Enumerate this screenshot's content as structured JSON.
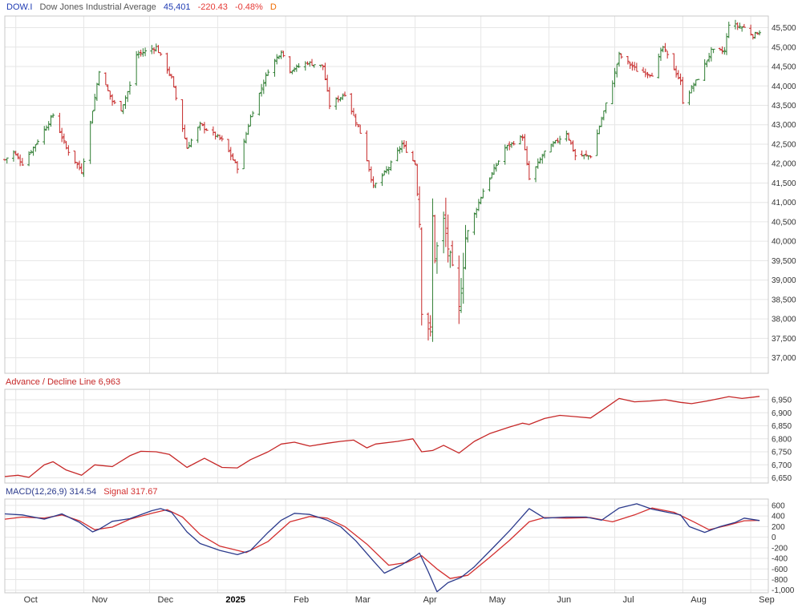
{
  "colors": {
    "up": "#2e7d32",
    "down": "#c62828",
    "ad_line": "#c62828",
    "macd_line": "#2b3a8c",
    "signal_line": "#d32f2f",
    "grid": "#e6e6e6",
    "frame": "#c8c8c8",
    "axis_text": "#333333",
    "label_blue": "#1f3bb3",
    "label_red": "#e53935",
    "label_gray": "#666666",
    "label_orange": "#ef6c00"
  },
  "header": {
    "symbol": "DOW.I",
    "name": "Dow Jones Industrial Average",
    "last": "45,401",
    "change": "-220.43",
    "change_pct": "-0.48%",
    "period": "D"
  },
  "ad_panel": {
    "label": "Advance / Decline Line 6,963"
  },
  "macd_panel": {
    "label": "MACD(12,26,9) 314.54",
    "signal_label": "Signal 317.67"
  },
  "chart_data": [
    {
      "type": "ohlc",
      "ylim": [
        36600,
        45800
      ],
      "y_ticks": [
        37000,
        37500,
        38000,
        38500,
        39000,
        39500,
        40000,
        40500,
        41000,
        41500,
        42000,
        42500,
        43000,
        43500,
        44000,
        44500,
        45000,
        45500
      ],
      "y_tick_labels": [
        "37,000",
        "37,500",
        "38,000",
        "38,500",
        "39,000",
        "39,500",
        "40,000",
        "40,500",
        "41,000",
        "41,500",
        "42,000",
        "42,500",
        "43,000",
        "43,500",
        "44,000",
        "44,500",
        "45,000",
        "45,500"
      ],
      "grid": true,
      "close_anchors": [
        [
          "2024-09-26",
          42100
        ],
        [
          "2024-09-30",
          42300
        ],
        [
          "2024-10-04",
          42000
        ],
        [
          "2024-10-10",
          42500
        ],
        [
          "2024-10-18",
          43250
        ],
        [
          "2024-10-24",
          42400
        ],
        [
          "2024-10-31",
          41800
        ],
        [
          "2024-11-01",
          42100
        ],
        [
          "2024-11-06",
          43700
        ],
        [
          "2024-11-08",
          44400
        ],
        [
          "2024-11-14",
          43600
        ],
        [
          "2024-11-18",
          43400
        ],
        [
          "2024-11-22",
          44000
        ],
        [
          "2024-11-25",
          44800
        ],
        [
          "2024-12-04",
          45000
        ],
        [
          "2024-12-11",
          44200
        ],
        [
          "2024-12-18",
          42400
        ],
        [
          "2024-12-24",
          43000
        ],
        [
          "2025-01-03",
          42600
        ],
        [
          "2025-01-10",
          41900
        ],
        [
          "2025-01-16",
          43200
        ],
        [
          "2025-01-24",
          44400
        ],
        [
          "2025-01-30",
          44900
        ],
        [
          "2025-02-03",
          44400
        ],
        [
          "2025-02-11",
          44600
        ],
        [
          "2025-02-18",
          44500
        ],
        [
          "2025-02-21",
          43500
        ],
        [
          "2025-02-28",
          43800
        ],
        [
          "2025-03-07",
          42800
        ],
        [
          "2025-03-13",
          41400
        ],
        [
          "2025-03-20",
          41900
        ],
        [
          "2025-03-26",
          42500
        ],
        [
          "2025-04-01",
          42000
        ],
        [
          "2025-04-03",
          40500
        ],
        [
          "2025-04-04",
          38300
        ],
        [
          "2025-04-08",
          37650
        ],
        [
          "2025-04-09",
          40600
        ],
        [
          "2025-04-10",
          39600
        ],
        [
          "2025-04-14",
          40500
        ],
        [
          "2025-04-21",
          38200
        ],
        [
          "2025-04-24",
          40100
        ],
        [
          "2025-05-02",
          41300
        ],
        [
          "2025-05-12",
          42400
        ],
        [
          "2025-05-20",
          42700
        ],
        [
          "2025-05-23",
          41600
        ],
        [
          "2025-05-30",
          42300
        ],
        [
          "2025-06-09",
          42800
        ],
        [
          "2025-06-13",
          42200
        ],
        [
          "2025-06-20",
          42200
        ],
        [
          "2025-06-30",
          44100
        ],
        [
          "2025-07-03",
          44800
        ],
        [
          "2025-07-11",
          44400
        ],
        [
          "2025-07-18",
          44300
        ],
        [
          "2025-07-23",
          45000
        ],
        [
          "2025-07-31",
          44100
        ],
        [
          "2025-08-01",
          43600
        ],
        [
          "2025-08-08",
          44200
        ],
        [
          "2025-08-14",
          44900
        ],
        [
          "2025-08-20",
          44900
        ],
        [
          "2025-08-22",
          45600
        ],
        [
          "2025-08-29",
          45500
        ],
        [
          "2025-09-02",
          45300
        ],
        [
          "2025-09-05",
          45401
        ]
      ]
    },
    {
      "type": "line",
      "name": "Advance / Decline Line",
      "ylim": [
        6630,
        6990
      ],
      "y_ticks": [
        6650,
        6700,
        6750,
        6800,
        6850,
        6900,
        6950
      ],
      "y_tick_labels": [
        "6,650",
        "6,700",
        "6,750",
        "6,800",
        "6,850",
        "6,900",
        "6,950"
      ],
      "points": [
        [
          "2024-09-26",
          6655
        ],
        [
          "2024-10-02",
          6660
        ],
        [
          "2024-10-07",
          6652
        ],
        [
          "2024-10-14",
          6700
        ],
        [
          "2024-10-18",
          6712
        ],
        [
          "2024-10-24",
          6680
        ],
        [
          "2024-10-31",
          6660
        ],
        [
          "2024-11-06",
          6700
        ],
        [
          "2024-11-14",
          6693
        ],
        [
          "2024-11-22",
          6735
        ],
        [
          "2024-11-27",
          6752
        ],
        [
          "2024-12-04",
          6750
        ],
        [
          "2024-12-10",
          6740
        ],
        [
          "2024-12-18",
          6690
        ],
        [
          "2024-12-26",
          6725
        ],
        [
          "2025-01-03",
          6690
        ],
        [
          "2025-01-10",
          6688
        ],
        [
          "2025-01-16",
          6720
        ],
        [
          "2025-01-24",
          6750
        ],
        [
          "2025-01-30",
          6780
        ],
        [
          "2025-02-05",
          6787
        ],
        [
          "2025-02-12",
          6772
        ],
        [
          "2025-02-20",
          6783
        ],
        [
          "2025-02-26",
          6790
        ],
        [
          "2025-03-04",
          6795
        ],
        [
          "2025-03-10",
          6765
        ],
        [
          "2025-03-14",
          6780
        ],
        [
          "2025-03-24",
          6790
        ],
        [
          "2025-03-31",
          6800
        ],
        [
          "2025-04-04",
          6750
        ],
        [
          "2025-04-09",
          6755
        ],
        [
          "2025-04-14",
          6775
        ],
        [
          "2025-04-21",
          6745
        ],
        [
          "2025-04-28",
          6790
        ],
        [
          "2025-05-05",
          6820
        ],
        [
          "2025-05-14",
          6845
        ],
        [
          "2025-05-20",
          6860
        ],
        [
          "2025-05-23",
          6855
        ],
        [
          "2025-05-30",
          6878
        ],
        [
          "2025-06-06",
          6890
        ],
        [
          "2025-06-13",
          6885
        ],
        [
          "2025-06-20",
          6880
        ],
        [
          "2025-06-27",
          6920
        ],
        [
          "2025-07-03",
          6955
        ],
        [
          "2025-07-10",
          6942
        ],
        [
          "2025-07-17",
          6945
        ],
        [
          "2025-07-24",
          6950
        ],
        [
          "2025-07-31",
          6940
        ],
        [
          "2025-08-05",
          6935
        ],
        [
          "2025-08-12",
          6945
        ],
        [
          "2025-08-18",
          6955
        ],
        [
          "2025-08-22",
          6962
        ],
        [
          "2025-08-28",
          6955
        ],
        [
          "2025-09-02",
          6960
        ],
        [
          "2025-09-05",
          6963
        ]
      ]
    },
    {
      "type": "line",
      "name": "MACD(12,26,9)",
      "ylim": [
        -1050,
        720
      ],
      "y_ticks": [
        -1000,
        -800,
        -600,
        -400,
        -200,
        0,
        200,
        400,
        600
      ],
      "y_tick_labels": [
        "-1,000",
        "-800",
        "-600",
        "-400",
        "-200",
        "0",
        "200",
        "400",
        "600"
      ],
      "series": [
        {
          "name": "MACD",
          "points": [
            [
              "2024-09-26",
              440
            ],
            [
              "2024-10-04",
              420
            ],
            [
              "2024-10-14",
              340
            ],
            [
              "2024-10-22",
              440
            ],
            [
              "2024-10-30",
              280
            ],
            [
              "2024-11-05",
              100
            ],
            [
              "2024-11-08",
              150
            ],
            [
              "2024-11-14",
              300
            ],
            [
              "2024-11-22",
              350
            ],
            [
              "2024-12-02",
              500
            ],
            [
              "2024-12-06",
              540
            ],
            [
              "2024-12-11",
              470
            ],
            [
              "2024-12-18",
              100
            ],
            [
              "2024-12-24",
              -120
            ],
            [
              "2025-01-02",
              -250
            ],
            [
              "2025-01-10",
              -330
            ],
            [
              "2025-01-16",
              -250
            ],
            [
              "2025-01-24",
              90
            ],
            [
              "2025-01-30",
              320
            ],
            [
              "2025-02-05",
              450
            ],
            [
              "2025-02-12",
              430
            ],
            [
              "2025-02-20",
              320
            ],
            [
              "2025-02-26",
              200
            ],
            [
              "2025-03-05",
              -70
            ],
            [
              "2025-03-13",
              -450
            ],
            [
              "2025-03-18",
              -680
            ],
            [
              "2025-03-26",
              -520
            ],
            [
              "2025-04-01",
              -360
            ],
            [
              "2025-04-03",
              -300
            ],
            [
              "2025-04-07",
              -650
            ],
            [
              "2025-04-11",
              -1030
            ],
            [
              "2025-04-16",
              -860
            ],
            [
              "2025-04-22",
              -760
            ],
            [
              "2025-04-28",
              -560
            ],
            [
              "2025-05-07",
              -180
            ],
            [
              "2025-05-14",
              120
            ],
            [
              "2025-05-23",
              540
            ],
            [
              "2025-05-30",
              360
            ],
            [
              "2025-06-09",
              380
            ],
            [
              "2025-06-18",
              380
            ],
            [
              "2025-06-25",
              320
            ],
            [
              "2025-07-03",
              550
            ],
            [
              "2025-07-11",
              630
            ],
            [
              "2025-07-18",
              530
            ],
            [
              "2025-07-25",
              470
            ],
            [
              "2025-07-31",
              420
            ],
            [
              "2025-08-04",
              200
            ],
            [
              "2025-08-11",
              90
            ],
            [
              "2025-08-18",
              200
            ],
            [
              "2025-08-25",
              280
            ],
            [
              "2025-08-29",
              360
            ],
            [
              "2025-09-05",
              315
            ]
          ]
        },
        {
          "name": "Signal",
          "points": [
            [
              "2024-09-26",
              340
            ],
            [
              "2024-10-04",
              380
            ],
            [
              "2024-10-14",
              360
            ],
            [
              "2024-10-22",
              420
            ],
            [
              "2024-10-30",
              310
            ],
            [
              "2024-11-06",
              140
            ],
            [
              "2024-11-14",
              190
            ],
            [
              "2024-11-22",
              340
            ],
            [
              "2024-12-02",
              450
            ],
            [
              "2024-12-09",
              520
            ],
            [
              "2024-12-16",
              380
            ],
            [
              "2024-12-24",
              50
            ],
            [
              "2025-01-02",
              -170
            ],
            [
              "2025-01-14",
              -290
            ],
            [
              "2025-01-24",
              -80
            ],
            [
              "2025-02-03",
              290
            ],
            [
              "2025-02-12",
              390
            ],
            [
              "2025-02-20",
              360
            ],
            [
              "2025-02-28",
              200
            ],
            [
              "2025-03-10",
              -130
            ],
            [
              "2025-03-20",
              -530
            ],
            [
              "2025-03-28",
              -480
            ],
            [
              "2025-04-04",
              -350
            ],
            [
              "2025-04-11",
              -600
            ],
            [
              "2025-04-17",
              -780
            ],
            [
              "2025-04-25",
              -720
            ],
            [
              "2025-05-05",
              -380
            ],
            [
              "2025-05-14",
              -60
            ],
            [
              "2025-05-23",
              290
            ],
            [
              "2025-05-30",
              370
            ],
            [
              "2025-06-09",
              360
            ],
            [
              "2025-06-20",
              370
            ],
            [
              "2025-06-30",
              290
            ],
            [
              "2025-07-10",
              420
            ],
            [
              "2025-07-18",
              550
            ],
            [
              "2025-07-28",
              470
            ],
            [
              "2025-08-06",
              290
            ],
            [
              "2025-08-13",
              140
            ],
            [
              "2025-08-22",
              230
            ],
            [
              "2025-08-29",
              310
            ],
            [
              "2025-09-05",
              318
            ]
          ]
        }
      ]
    }
  ],
  "x_axis": {
    "start": "2024-09-26",
    "end": "2025-09-09",
    "labels": [
      {
        "date": "2024-10-01",
        "label": "Oct"
      },
      {
        "date": "2024-11-01",
        "label": "Nov"
      },
      {
        "date": "2024-12-01",
        "label": "Dec"
      },
      {
        "date": "2025-01-01",
        "label": "2025"
      },
      {
        "date": "2025-02-01",
        "label": "Feb"
      },
      {
        "date": "2025-03-01",
        "label": "Mar"
      },
      {
        "date": "2025-04-01",
        "label": "Apr"
      },
      {
        "date": "2025-05-01",
        "label": "May"
      },
      {
        "date": "2025-06-01",
        "label": "Jun"
      },
      {
        "date": "2025-07-01",
        "label": "Jul"
      },
      {
        "date": "2025-08-01",
        "label": "Aug"
      },
      {
        "date": "2025-09-01",
        "label": "Sep"
      }
    ]
  }
}
